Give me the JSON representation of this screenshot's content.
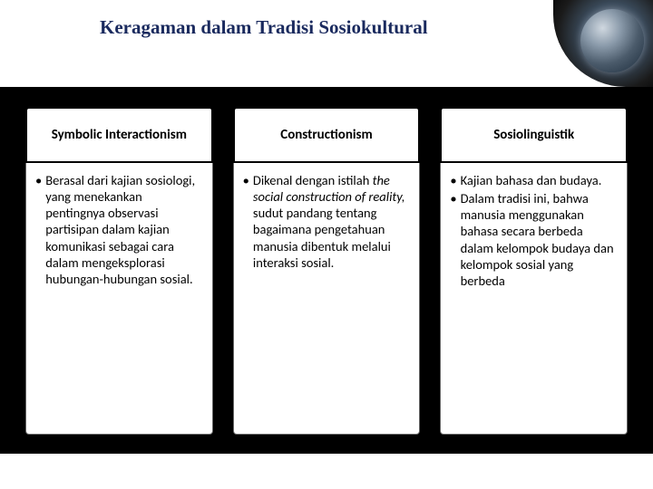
{
  "title": "Keragaman dalam Tradisi Sosiokultural",
  "columns": [
    {
      "header": "Symbolic Interactionism",
      "bullets": [
        {
          "text": "Berasal dari kajian sosiologi, yang menekankan pentingnya observasi partisipan dalam kajian komunikasi sebagai cara dalam mengeksplorasi hubungan-hubungan sosial."
        }
      ]
    },
    {
      "header": "Constructionism",
      "bullets": [
        {
          "prefix": "Dikenal dengan istilah ",
          "italic": "the social construction of reality,",
          "suffix": " sudut pandang tentang bagaimana pengetahuan manusia dibentuk melalui interaksi sosial."
        }
      ]
    },
    {
      "header": "Sosiolinguistik",
      "bullets": [
        {
          "text": "Kajian bahasa dan budaya."
        },
        {
          "text": "Dalam tradisi ini, bahwa manusia menggunakan bahasa secara berbeda dalam kelompok budaya dan kelompok sosial yang berbeda"
        }
      ]
    }
  ],
  "colors": {
    "title_color": "#1a2a5e",
    "band_bg": "#000000",
    "card_bg": "#ffffff"
  }
}
